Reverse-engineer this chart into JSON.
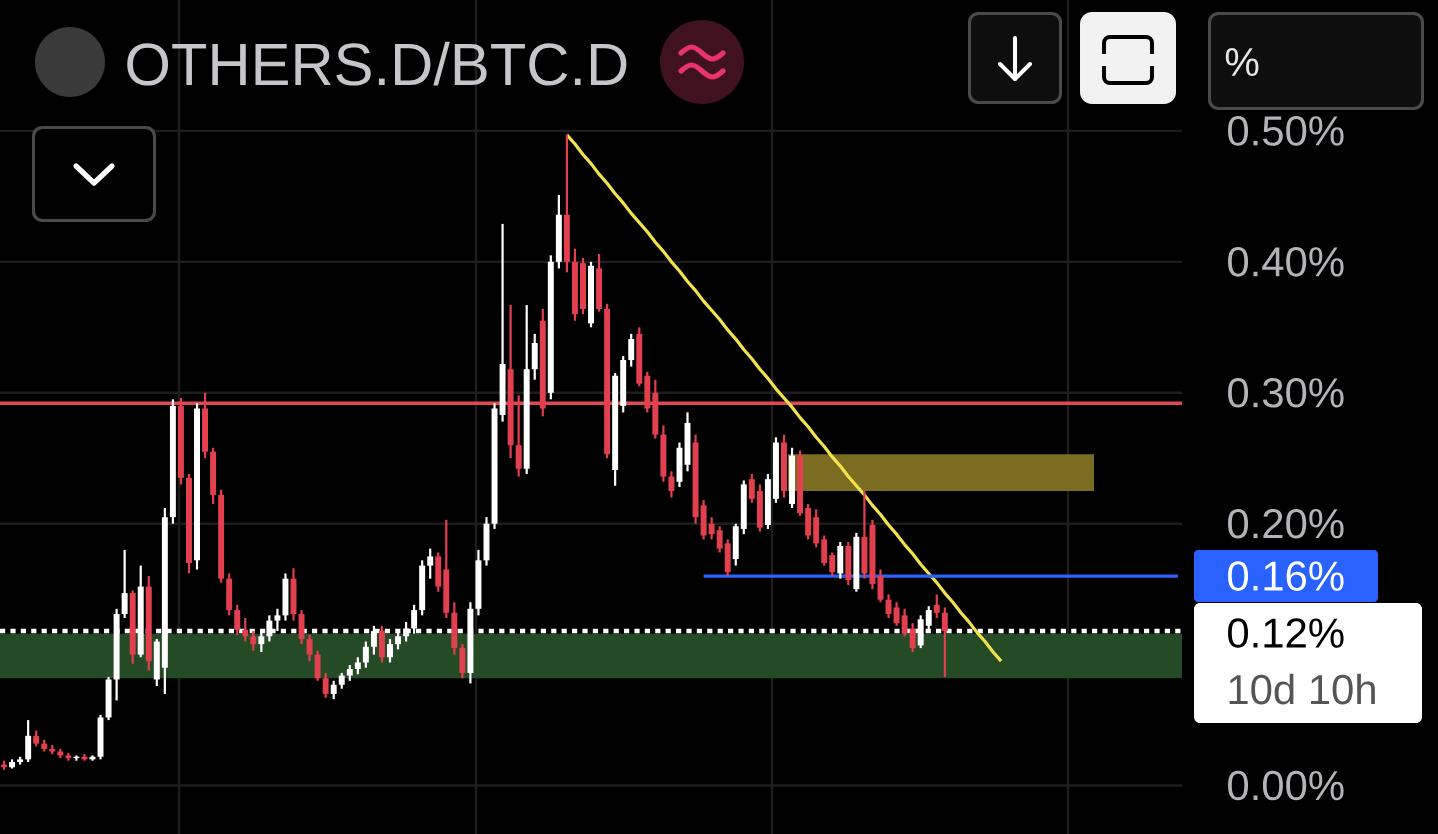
{
  "chart_data": {
    "type": "candlestick",
    "title": "OTHERS.D/BTC.D",
    "categories": [
      null,
      null,
      null,
      null,
      null,
      null,
      null,
      null,
      null,
      null,
      null,
      null,
      null,
      null,
      null,
      null,
      null,
      null,
      null,
      null,
      null,
      null,
      null,
      null,
      null,
      null,
      null,
      null,
      null,
      null,
      null,
      null,
      null,
      null,
      null,
      null,
      null,
      null,
      null,
      null,
      null,
      null,
      null,
      null,
      null,
      null,
      null,
      null,
      null,
      null,
      null,
      null,
      null,
      null,
      null,
      null,
      null,
      null,
      null,
      null,
      null,
      null,
      null,
      null,
      null,
      null,
      null,
      null,
      null,
      null,
      null,
      null,
      null,
      null,
      null,
      null,
      null,
      null,
      null,
      null,
      null,
      null,
      null,
      null,
      null,
      null,
      null,
      null,
      null,
      null,
      null,
      null,
      null,
      null,
      null,
      null,
      null,
      null,
      null,
      null,
      null,
      null,
      null,
      null,
      null,
      null,
      null,
      null,
      null,
      null,
      null,
      null,
      null,
      null,
      null,
      null,
      null,
      null,
      null,
      null,
      null,
      null,
      null,
      null,
      null,
      null,
      null,
      null,
      null,
      null,
      null,
      null,
      null,
      null,
      null,
      null,
      null,
      null,
      null,
      null,
      null,
      null,
      null,
      null,
      null,
      null,
      null
    ],
    "series": [
      {
        "ohlc": [
          [
            0.016,
            0.019,
            0.012,
            0.014
          ],
          [
            0.014,
            0.02,
            0.013,
            0.018
          ],
          [
            0.018,
            0.022,
            0.016,
            0.02
          ],
          [
            0.02,
            0.05,
            0.018,
            0.038
          ],
          [
            0.038,
            0.042,
            0.03,
            0.032
          ],
          [
            0.032,
            0.035,
            0.026,
            0.028
          ],
          [
            0.028,
            0.031,
            0.024,
            0.026
          ],
          [
            0.026,
            0.028,
            0.021,
            0.023
          ],
          [
            0.023,
            0.025,
            0.019,
            0.021
          ],
          [
            0.021,
            0.023,
            0.019,
            0.022
          ],
          [
            0.022,
            0.024,
            0.019,
            0.02
          ],
          [
            0.02,
            0.023,
            0.019,
            0.022
          ],
          [
            0.022,
            0.054,
            0.02,
            0.052
          ],
          [
            0.052,
            0.083,
            0.05,
            0.081
          ],
          [
            0.081,
            0.135,
            0.065,
            0.131
          ],
          [
            0.131,
            0.18,
            0.128,
            0.147
          ],
          [
            0.147,
            0.149,
            0.093,
            0.1
          ],
          [
            0.1,
            0.168,
            0.098,
            0.152
          ],
          [
            0.152,
            0.16,
            0.088,
            0.095
          ],
          [
            0.081,
            0.112,
            0.076,
            0.11
          ],
          [
            0.09,
            0.212,
            0.07,
            0.205
          ],
          [
            0.205,
            0.295,
            0.2,
            0.29
          ],
          [
            0.29,
            0.296,
            0.23,
            0.235
          ],
          [
            0.235,
            0.238,
            0.162,
            0.17
          ],
          [
            0.172,
            0.292,
            0.165,
            0.288
          ],
          [
            0.288,
            0.3,
            0.25,
            0.255
          ],
          [
            0.255,
            0.258,
            0.215,
            0.222
          ],
          [
            0.222,
            0.226,
            0.155,
            0.158
          ],
          [
            0.158,
            0.162,
            0.13,
            0.134
          ],
          [
            0.134,
            0.138,
            0.115,
            0.119
          ],
          [
            0.119,
            0.128,
            0.11,
            0.114
          ],
          [
            0.114,
            0.118,
            0.103,
            0.108
          ],
          [
            0.108,
            0.118,
            0.102,
            0.114
          ],
          [
            0.114,
            0.13,
            0.11,
            0.126
          ],
          [
            0.126,
            0.135,
            0.118,
            0.13
          ],
          [
            0.13,
            0.162,
            0.126,
            0.158
          ],
          [
            0.158,
            0.166,
            0.126,
            0.131
          ],
          [
            0.131,
            0.134,
            0.108,
            0.112
          ],
          [
            0.112,
            0.115,
            0.095,
            0.1
          ],
          [
            0.1,
            0.103,
            0.08,
            0.082
          ],
          [
            0.082,
            0.086,
            0.067,
            0.07
          ],
          [
            0.07,
            0.08,
            0.066,
            0.077
          ],
          [
            0.077,
            0.086,
            0.074,
            0.084
          ],
          [
            0.084,
            0.092,
            0.08,
            0.089
          ],
          [
            0.089,
            0.098,
            0.085,
            0.094
          ],
          [
            0.094,
            0.11,
            0.09,
            0.106
          ],
          [
            0.106,
            0.122,
            0.1,
            0.118
          ],
          [
            0.118,
            0.122,
            0.094,
            0.098
          ],
          [
            0.098,
            0.112,
            0.094,
            0.108
          ],
          [
            0.108,
            0.118,
            0.104,
            0.114
          ],
          [
            0.114,
            0.125,
            0.11,
            0.12
          ],
          [
            0.12,
            0.138,
            0.116,
            0.134
          ],
          [
            0.134,
            0.172,
            0.13,
            0.168
          ],
          [
            0.168,
            0.181,
            0.158,
            0.175
          ],
          [
            0.175,
            0.178,
            0.148,
            0.152
          ],
          [
            0.165,
            0.203,
            0.128,
            0.132
          ],
          [
            0.132,
            0.14,
            0.1,
            0.105
          ],
          [
            0.105,
            0.108,
            0.082,
            0.086
          ],
          [
            0.086,
            0.14,
            0.078,
            0.135
          ],
          [
            0.135,
            0.18,
            0.13,
            0.172
          ],
          [
            0.172,
            0.205,
            0.168,
            0.2
          ],
          [
            0.2,
            0.292,
            0.196,
            0.288
          ],
          [
            0.283,
            0.429,
            0.278,
            0.322
          ],
          [
            0.318,
            0.367,
            0.25,
            0.26
          ],
          [
            0.26,
            0.298,
            0.236,
            0.242
          ],
          [
            0.242,
            0.367,
            0.238,
            0.318
          ],
          [
            0.318,
            0.345,
            0.31,
            0.338
          ],
          [
            0.355,
            0.364,
            0.282,
            0.288
          ],
          [
            0.3,
            0.405,
            0.295,
            0.4
          ],
          [
            0.4,
            0.451,
            0.395,
            0.436
          ],
          [
            0.436,
            0.497,
            0.392,
            0.4
          ],
          [
            0.4,
            0.41,
            0.355,
            0.36
          ],
          [
            0.399,
            0.403,
            0.36,
            0.364
          ],
          [
            0.353,
            0.4,
            0.35,
            0.397
          ],
          [
            0.395,
            0.406,
            0.362,
            0.364
          ],
          [
            0.364,
            0.368,
            0.25,
            0.253
          ],
          [
            0.241,
            0.315,
            0.229,
            0.313
          ],
          [
            0.29,
            0.328,
            0.285,
            0.325
          ],
          [
            0.325,
            0.345,
            0.32,
            0.341
          ],
          [
            0.345,
            0.35,
            0.305,
            0.307
          ],
          [
            0.313,
            0.316,
            0.285,
            0.288
          ],
          [
            0.3,
            0.31,
            0.265,
            0.268
          ],
          [
            0.268,
            0.275,
            0.232,
            0.236
          ],
          [
            0.236,
            0.24,
            0.22,
            0.225
          ],
          [
            0.232,
            0.262,
            0.228,
            0.258
          ],
          [
            0.245,
            0.285,
            0.24,
            0.277
          ],
          [
            0.262,
            0.268,
            0.2,
            0.205
          ],
          [
            0.214,
            0.218,
            0.188,
            0.191
          ],
          [
            0.2,
            0.205,
            0.188,
            0.192
          ],
          [
            0.195,
            0.198,
            0.178,
            0.181
          ],
          [
            0.185,
            0.188,
            0.16,
            0.163
          ],
          [
            0.173,
            0.2,
            0.168,
            0.198
          ],
          [
            0.196,
            0.233,
            0.192,
            0.23
          ],
          [
            0.234,
            0.238,
            0.216,
            0.219
          ],
          [
            0.225,
            0.23,
            0.194,
            0.197
          ],
          [
            0.199,
            0.238,
            0.196,
            0.234
          ],
          [
            0.219,
            0.266,
            0.216,
            0.262
          ],
          [
            0.262,
            0.268,
            0.22,
            0.225
          ],
          [
            0.215,
            0.258,
            0.212,
            0.252
          ],
          [
            0.252,
            0.256,
            0.206,
            0.208
          ],
          [
            0.212,
            0.215,
            0.188,
            0.191
          ],
          [
            0.205,
            0.211,
            0.182,
            0.185
          ],
          [
            0.188,
            0.191,
            0.168,
            0.17
          ],
          [
            0.176,
            0.178,
            0.16,
            0.163
          ],
          [
            0.162,
            0.186,
            0.158,
            0.183
          ],
          [
            0.183,
            0.186,
            0.153,
            0.157
          ],
          [
            0.15,
            0.193,
            0.148,
            0.19
          ],
          [
            0.19,
            0.225,
            0.158,
            0.162
          ],
          [
            0.199,
            0.203,
            0.15,
            0.154
          ],
          [
            0.16,
            0.165,
            0.14,
            0.142
          ],
          [
            0.142,
            0.146,
            0.128,
            0.131
          ],
          [
            0.136,
            0.14,
            0.122,
            0.124
          ],
          [
            0.13,
            0.135,
            0.114,
            0.116
          ],
          [
            0.12,
            0.124,
            0.102,
            0.105
          ],
          [
            0.107,
            0.13,
            0.105,
            0.127
          ],
          [
            0.122,
            0.137,
            0.118,
            0.134
          ],
          [
            0.138,
            0.146,
            0.128,
            0.132
          ],
          [
            0.132,
            0.136,
            0.083,
            0.118
          ],
          null,
          null,
          null,
          null,
          null,
          null,
          null,
          null,
          null,
          null,
          null,
          null,
          null,
          null,
          null,
          null,
          null,
          null,
          null,
          null,
          null,
          null,
          null,
          null,
          null,
          null,
          null,
          null,
          null
        ],
        "colors": [
          "#e23f4f",
          "#ffffff",
          "#ffffff",
          "#ffffff",
          "#e23f4f",
          "#e23f4f",
          "#e23f4f",
          "#e23f4f",
          "#e23f4f",
          "#ffffff",
          "#e23f4f",
          "#ffffff",
          "#ffffff",
          "#ffffff",
          "#ffffff",
          "#ffffff",
          "#e23f4f",
          "#ffffff",
          "#e23f4f",
          "#ffffff",
          "#ffffff",
          "#ffffff",
          "#e23f4f",
          "#e23f4f",
          "#ffffff",
          "#e23f4f",
          "#e23f4f",
          "#e23f4f",
          "#e23f4f",
          "#e23f4f",
          "#e23f4f",
          "#e23f4f",
          "#ffffff",
          "#ffffff",
          "#ffffff",
          "#ffffff",
          "#e23f4f",
          "#e23f4f",
          "#e23f4f",
          "#e23f4f",
          "#e23f4f",
          "#ffffff",
          "#ffffff",
          "#ffffff",
          "#ffffff",
          "#ffffff",
          "#ffffff",
          "#e23f4f",
          "#ffffff",
          "#ffffff",
          "#ffffff",
          "#ffffff",
          "#ffffff",
          "#ffffff",
          "#e23f4f",
          "#e23f4f",
          "#e23f4f",
          "#e23f4f",
          "#ffffff",
          "#ffffff",
          "#ffffff",
          "#ffffff",
          "#ffffff",
          "#e23f4f",
          "#e23f4f",
          "#ffffff",
          "#ffffff",
          "#e23f4f",
          "#ffffff",
          "#ffffff",
          "#e23f4f",
          "#e23f4f",
          "#e23f4f",
          "#ffffff",
          "#e23f4f",
          "#e23f4f",
          "#ffffff",
          "#ffffff",
          "#ffffff",
          "#e23f4f",
          "#e23f4f",
          "#e23f4f",
          "#e23f4f",
          "#e23f4f",
          "#ffffff",
          "#ffffff",
          "#e23f4f",
          "#e23f4f",
          "#e23f4f",
          "#e23f4f",
          "#e23f4f",
          "#ffffff",
          "#ffffff",
          "#e23f4f",
          "#e23f4f",
          "#ffffff",
          "#ffffff",
          "#e23f4f",
          "#ffffff",
          "#e23f4f",
          "#e23f4f",
          "#e23f4f",
          "#e23f4f",
          "#e23f4f",
          "#ffffff",
          "#e23f4f",
          "#ffffff",
          "#e23f4f",
          "#e23f4f",
          "#e23f4f",
          "#e23f4f",
          "#e23f4f",
          "#e23f4f",
          "#e23f4f",
          "#ffffff",
          "#ffffff",
          "#e23f4f",
          "#e23f4f",
          null,
          null,
          null,
          null,
          null,
          null,
          null,
          null,
          null,
          null,
          null,
          null,
          null,
          null,
          null,
          null,
          null,
          null,
          null,
          null,
          null,
          null,
          null,
          null,
          null,
          null,
          null,
          null,
          null
        ]
      },
      {
        "type": "line",
        "color": "#f2e24c",
        "values": [
          null,
          null,
          null,
          null,
          null,
          null,
          null,
          null,
          null,
          null,
          null,
          null,
          null,
          null,
          null,
          null,
          null,
          null,
          null,
          null,
          null,
          null,
          null,
          null,
          null,
          null,
          null,
          null,
          null,
          null,
          null,
          null,
          null,
          null,
          null,
          null,
          null,
          null,
          null,
          null,
          null,
          null,
          null,
          null,
          null,
          null,
          null,
          null,
          null,
          null,
          null,
          null,
          null,
          null,
          null,
          null,
          null,
          null,
          null,
          null,
          null,
          null,
          null,
          null,
          null,
          null,
          null,
          null,
          null,
          null,
          0.497,
          0.49,
          0.482,
          0.475,
          0.467,
          0.46,
          0.452,
          0.445,
          0.437,
          0.43,
          0.423,
          0.415,
          0.408,
          0.4,
          0.393,
          0.385,
          0.378,
          0.37,
          0.363,
          0.356,
          0.348,
          0.341,
          0.333,
          0.326,
          0.318,
          0.311,
          0.303,
          0.296,
          0.289,
          0.281,
          0.274,
          0.266,
          0.259,
          0.251,
          0.244,
          0.236,
          0.229,
          0.222,
          0.214,
          0.207,
          0.199,
          0.192,
          0.184,
          0.177,
          0.169,
          0.162,
          0.155,
          0.147,
          0.14,
          0.132,
          0.125,
          0.117,
          0.11,
          0.102,
          0.095,
          null,
          null,
          null,
          null,
          null,
          null,
          null,
          null,
          null,
          null,
          null,
          null,
          null,
          null,
          null,
          null,
          null,
          null,
          null,
          null,
          null,
          null
        ]
      },
      {
        "type": "line",
        "color": "#2962ff",
        "values": [
          null,
          null,
          null,
          null,
          null,
          null,
          null,
          null,
          null,
          null,
          null,
          null,
          null,
          null,
          null,
          null,
          null,
          null,
          null,
          null,
          null,
          null,
          null,
          null,
          null,
          null,
          null,
          null,
          null,
          null,
          null,
          null,
          null,
          null,
          null,
          null,
          null,
          null,
          null,
          null,
          null,
          null,
          null,
          null,
          null,
          null,
          null,
          null,
          null,
          null,
          null,
          null,
          null,
          null,
          null,
          null,
          null,
          null,
          null,
          null,
          null,
          null,
          null,
          null,
          null,
          null,
          null,
          null,
          null,
          null,
          null,
          null,
          null,
          null,
          null,
          null,
          null,
          null,
          null,
          null,
          null,
          null,
          null,
          null,
          null,
          null,
          null,
          0.16,
          0.16,
          0.16,
          0.16,
          0.16,
          0.16,
          0.16,
          0.16,
          0.16,
          0.16,
          0.16,
          0.16,
          0.16,
          0.16,
          0.16,
          0.16,
          0.16,
          0.16,
          0.16,
          0.16,
          0.16,
          0.16,
          0.16,
          0.16,
          0.16,
          0.16,
          0.16,
          0.16,
          0.16,
          0.16,
          0.16,
          0.16,
          0.16,
          0.16,
          0.16,
          0.16,
          0.16,
          0.16,
          0.16,
          0.16,
          0.16,
          0.16,
          0.16,
          0.16,
          0.16,
          0.16,
          0.16,
          0.16,
          0.16,
          0.16,
          0.16,
          0.16,
          0.16,
          0.16,
          0.16,
          0.16,
          0.16,
          0.16,
          0.16,
          0.16
        ]
      }
    ],
    "ylim": [
      -0.037,
      0.6
    ],
    "yticks": [
      {
        "value": 0,
        "label": "0.00%"
      },
      {
        "value": 0.2,
        "label": "0.20%"
      },
      {
        "value": 0.3,
        "label": "0.30%"
      },
      {
        "value": 0.4,
        "label": "0.40%"
      },
      {
        "value": 0.5,
        "label": "0.50%"
      }
    ],
    "tick_labels": "y",
    "grid": true,
    "bands": [
      {
        "axis": "y",
        "from": 0.082,
        "to": 0.116,
        "color": "#244a26"
      },
      {
        "axis": "y",
        "from": 0.225,
        "to": 0.253,
        "color": "#7a6c20"
      }
    ],
    "ref_lines": [
      {
        "axis": "y",
        "value": 0.292,
        "color": "#e04a4f"
      },
      {
        "axis": "y",
        "value": 0.118,
        "label": "0.12%",
        "color": "#ffffff",
        "line_style": "dotted"
      }
    ],
    "annotations": [
      "10d 10h",
      "0.16%",
      "%"
    ]
  }
}
